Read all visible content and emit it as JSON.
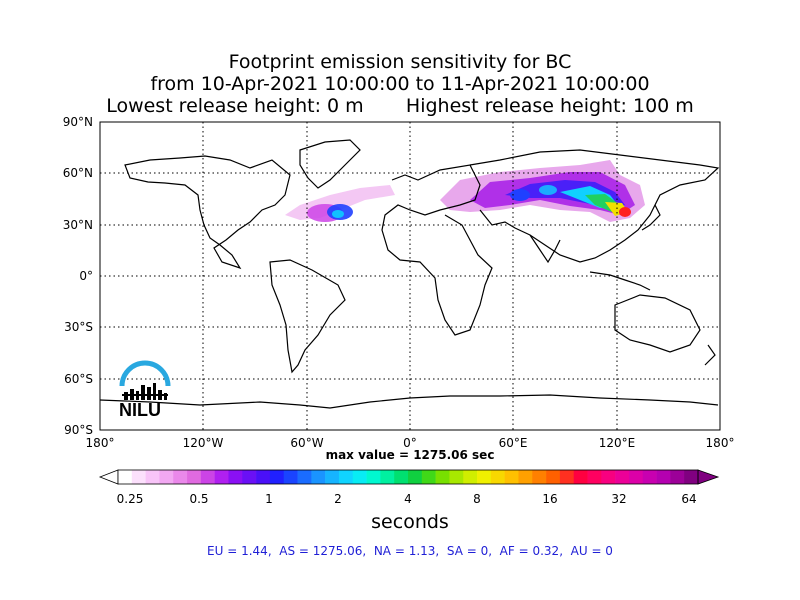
{
  "title": {
    "line1": "Footprint emission sensitivity for BC",
    "line2": "from 10-Apr-2021 10:00:00 to 11-Apr-2021 10:00:00",
    "line3": "Lowest release height: 0 m       Highest release height: 100 m"
  },
  "axes": {
    "lat_labels": [
      "90°N",
      "60°N",
      "30°N",
      "0°",
      "30°S",
      "60°S",
      "90°S"
    ],
    "lon_labels": [
      "180°",
      "120°W",
      "60°W",
      "0°",
      "60°E",
      "120°E",
      "180°"
    ]
  },
  "max_value": "max value = 1275.06 sec",
  "colorbar": {
    "ticks": [
      "0.25",
      "0.5",
      "1",
      "2",
      "4",
      "8",
      "16",
      "32",
      "64"
    ],
    "title": "seconds",
    "colors": [
      "#ffffff",
      "#fce0fc",
      "#f8c4f8",
      "#f2a8f2",
      "#ea88ea",
      "#e06ae0",
      "#cc44e6",
      "#b020f0",
      "#8a10f4",
      "#6a10f6",
      "#4a10f8",
      "#2020ff",
      "#1a44ff",
      "#1a6cff",
      "#1a94ff",
      "#16b4ff",
      "#10d4ff",
      "#08ecf4",
      "#00f8d0",
      "#00f0a0",
      "#00e070",
      "#10d040",
      "#40d818",
      "#78e000",
      "#a8e800",
      "#d0ee00",
      "#f0f000",
      "#f8d800",
      "#ffc000",
      "#ffa000",
      "#ff8000",
      "#ff6000",
      "#ff3020",
      "#ff0040",
      "#ff0060",
      "#f80080",
      "#ec0098",
      "#dc00a8",
      "#c800b0",
      "#b400b0",
      "#9c0098",
      "#800080"
    ]
  },
  "regions_text": "EU = 1.44,  AS = 1275.06,  NA = 1.13,  SA = 0,  AF = 0.32,  AU = 0",
  "logo": {
    "text": "NILU",
    "color": "#29a8e0"
  },
  "plume_colors": {
    "pink_light": "#f0b0f0",
    "magenta": "#d040e0",
    "purple": "#9020f0",
    "blue": "#2040ff",
    "cyan": "#10d0ff",
    "green": "#20d060",
    "yellow": "#f0e000",
    "red": "#ff2020"
  }
}
